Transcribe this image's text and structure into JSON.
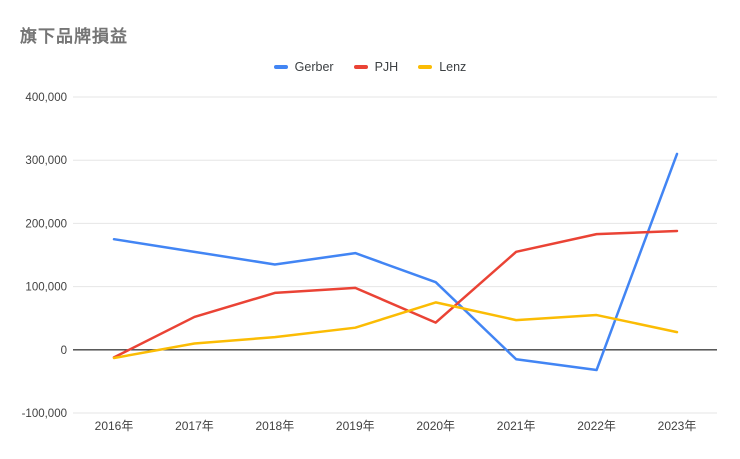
{
  "chart_data": {
    "type": "line",
    "title": "旗下品牌損益",
    "xlabel": "",
    "ylabel": "",
    "grid": true,
    "legend_position": "top-center",
    "categories": [
      "2016年",
      "2017年",
      "2018年",
      "2019年",
      "2020年",
      "2021年",
      "2022年",
      "2023年"
    ],
    "series": [
      {
        "name": "Gerber",
        "color": "#4285F4",
        "values": [
          175000,
          155000,
          135000,
          153000,
          107000,
          -15000,
          -32000,
          310000
        ]
      },
      {
        "name": "PJH",
        "color": "#EA4335",
        "values": [
          -12000,
          52000,
          90000,
          98000,
          43000,
          155000,
          183000,
          188000
        ]
      },
      {
        "name": "Lenz",
        "color": "#FBBC04",
        "values": [
          -13000,
          10000,
          20000,
          35000,
          75000,
          47000,
          55000,
          28000
        ]
      }
    ],
    "ylim": [
      -100000,
      400000
    ],
    "y_ticks": [
      {
        "value": 400000,
        "label": "400,000"
      },
      {
        "value": 300000,
        "label": "300,000"
      },
      {
        "value": 200000,
        "label": "200,000"
      },
      {
        "value": 100000,
        "label": "100,000"
      },
      {
        "value": 0,
        "label": "0"
      },
      {
        "value": -100000,
        "label": "-100,000"
      }
    ],
    "zero_axis_color": "#424242",
    "gridline_color": "#e6e6e6"
  }
}
